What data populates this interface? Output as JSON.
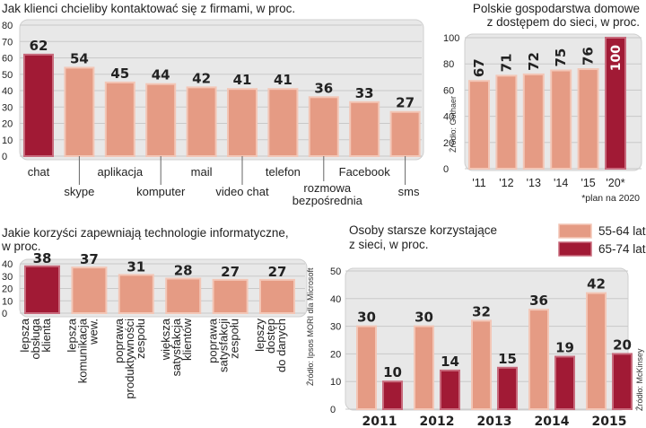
{
  "colors": {
    "light": "#e59b84",
    "light_edge": "#f3c6b6",
    "dark": "#a11a35",
    "dark_edge": "#c86a7c",
    "panel": "#e8e8e8",
    "panel_edge": "#cfcfcf",
    "grid": "#c9c9c9"
  },
  "chart_data": [
    {
      "id": "kontakt",
      "type": "bar",
      "title": "Jak klienci chcieliby kontaktować się z firmami, w proc.",
      "categories": [
        "chat",
        "skype",
        "aplikacja",
        "komputer",
        "mail",
        "video chat",
        "telefon",
        "rozmowa bezpośrednia",
        "Facebook",
        "sms"
      ],
      "label_lines": [
        [
          "chat"
        ],
        [
          "skype"
        ],
        [
          "aplikacja"
        ],
        [
          "komputer"
        ],
        [
          "mail"
        ],
        [
          "video chat"
        ],
        [
          "telefon"
        ],
        [
          "rozmowa",
          "bezpośrednia"
        ],
        [
          "Facebook"
        ],
        [
          "sms"
        ]
      ],
      "values": [
        62,
        54,
        45,
        44,
        42,
        41,
        41,
        36,
        33,
        27
      ],
      "highlight": [
        0
      ],
      "ylim": [
        0,
        80
      ],
      "yticks": [
        0,
        10,
        20,
        30,
        40,
        50,
        60,
        70,
        80
      ]
    },
    {
      "id": "gospodarstwa",
      "type": "bar",
      "title": [
        "Polskie gospodarstwa domowe",
        "z dostępem do sieci, w proc."
      ],
      "categories": [
        "'11",
        "'12",
        "'13",
        "'14",
        "'15",
        "'20*"
      ],
      "values": [
        67,
        71,
        72,
        75,
        76,
        100
      ],
      "highlight": [
        5
      ],
      "ylim": [
        0,
        100
      ],
      "yticks": [
        0,
        20,
        40,
        60,
        80,
        100
      ],
      "source": "Źródło: Gothaer",
      "note": "*plan na 2020"
    },
    {
      "id": "korzysci",
      "type": "bar",
      "title": [
        "Jakie korzyści zapewniają technologie informatyczne,",
        "w proc."
      ],
      "categories": [
        "lepsza obsługa klienta",
        "lepsza komunikacja wew.",
        "poprawa produktywności zespołu",
        "większa satysfakcja klientów",
        "poprawa satysfakcji zespołu",
        "lepszy dostęp do danych"
      ],
      "label_lines": [
        [
          "lepsza",
          "obsługa",
          "klienta"
        ],
        [
          "lepsza",
          "komunikacja",
          "wew."
        ],
        [
          "poprawa",
          "produktywności",
          "zespołu"
        ],
        [
          "większa",
          "satysfakcja",
          "klientów"
        ],
        [
          "poprawa",
          "satysfakcji",
          "zespołu"
        ],
        [
          "lepszy",
          "dostęp",
          "do danych"
        ]
      ],
      "values": [
        38,
        37,
        31,
        28,
        27,
        27
      ],
      "highlight": [
        0
      ],
      "ylim": [
        0,
        40
      ],
      "yticks": [
        0,
        10,
        20,
        30,
        40
      ],
      "source": "Źródło: Ipsos MORI dla Microsoft"
    },
    {
      "id": "starsi",
      "type": "bar",
      "title": [
        "Osoby starsze korzystające",
        "z sieci, w proc."
      ],
      "categories": [
        "2011",
        "2012",
        "2013",
        "2014",
        "2015"
      ],
      "series": [
        {
          "name": "55-64 lat",
          "values": [
            30,
            30,
            32,
            36,
            42
          ]
        },
        {
          "name": "65-74 lat",
          "values": [
            10,
            14,
            15,
            19,
            20
          ]
        }
      ],
      "ylim": [
        0,
        50
      ],
      "yticks": [
        0,
        10,
        20,
        30,
        40,
        50
      ],
      "source": "Źródło: McKinsey"
    }
  ]
}
